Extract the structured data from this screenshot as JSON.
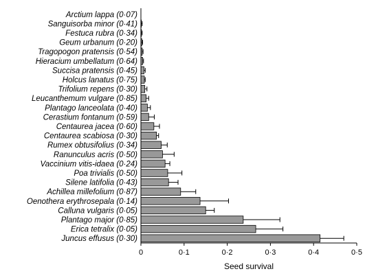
{
  "chart_data": {
    "type": "bar",
    "orientation": "horizontal",
    "categories": [
      "Arctium lappa (0·07)",
      "Sanguisorba minor (0·41)",
      "Festuca rubra (0·34)",
      "Geum urbanum (0·20)",
      "Tragopogon pratensis (0·54)",
      "Hieracium umbellatum (0·64)",
      "Succisa pratensis (0·45)",
      "Holcus lanatus (0·75)",
      "Trifolium repens (0·30)",
      "Leucanthemum vulgare (0·85)",
      "Plantago lanceolata (0·40)",
      "Cerastium fontanum (0·59)",
      "Centaurea jacea (0·60)",
      "Centaurea scabiosa (0·30)",
      "Rumex obtusifolius (0·34)",
      "Ranunculus acris (0·50)",
      "Vaccinium vitis-idaea (0·24)",
      "Poa trivialis (0·50)",
      "Silene latifolia (0·43)",
      "Achillea millefolium (0·87)",
      "Oenothera erythrosepala (0·14)",
      "Calluna vulgaris (0·05)",
      "Plantago major (0·85)",
      "Erica tetralix (0·05)",
      "Juncus effusus  (0·30)"
    ],
    "values": [
      0.0,
      0.001,
      0.001,
      0.002,
      0.003,
      0.004,
      0.007,
      0.008,
      0.009,
      0.012,
      0.015,
      0.018,
      0.03,
      0.036,
      0.047,
      0.05,
      0.056,
      0.062,
      0.064,
      0.092,
      0.137,
      0.15,
      0.237,
      0.266,
      0.415
    ],
    "errors": [
      0.0,
      0.002,
      0.002,
      0.002,
      0.002,
      0.002,
      0.003,
      0.002,
      0.005,
      0.006,
      0.007,
      0.013,
      0.013,
      0.005,
      0.014,
      0.027,
      0.011,
      0.033,
      0.022,
      0.035,
      0.066,
      0.02,
      0.085,
      0.063,
      0.055
    ],
    "xlabel": "Seed survival",
    "ylabel": "",
    "title": "",
    "xlim": [
      0,
      0.5
    ],
    "xticks": [
      0,
      0.1,
      0.2,
      0.3,
      0.4,
      0.5
    ],
    "xtick_labels": [
      "0",
      "0·1",
      "0·2",
      "0·3",
      "0·4",
      "0·5"
    ],
    "grid": false,
    "bar_color": "#999999",
    "bar_edge_color": "#000000"
  }
}
